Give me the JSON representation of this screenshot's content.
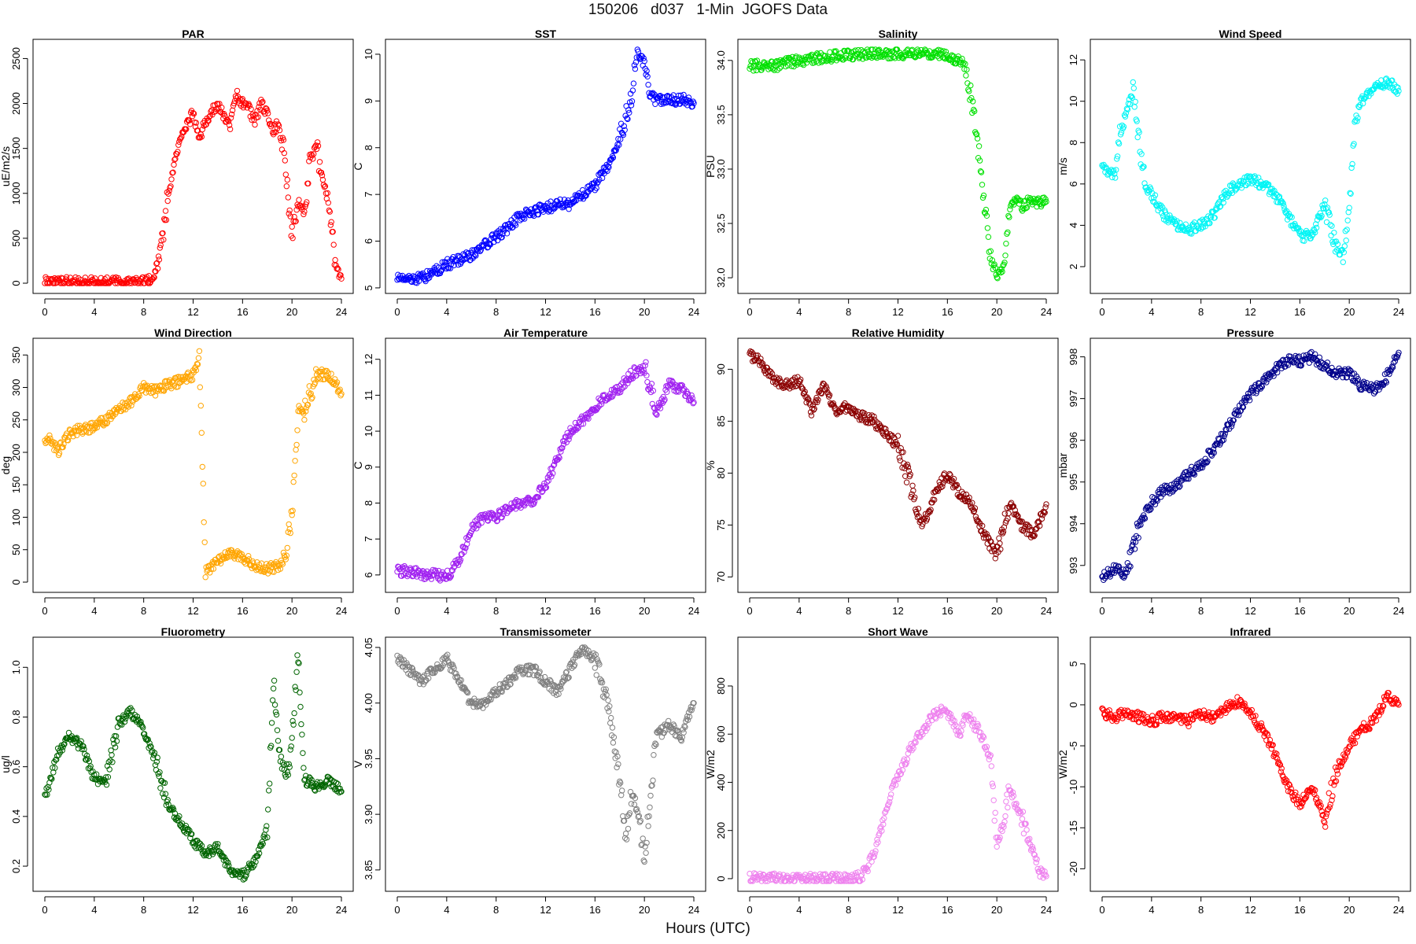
{
  "page": {
    "title": "150206   d037   1-Min  JGOFS Data",
    "x_axis_label": "Hours (UTC)"
  },
  "chart_data": [
    {
      "type": "scatter",
      "title": "PAR",
      "ylabel": "uE/m2/s",
      "color": "#ff0000",
      "xlim": [
        0,
        24
      ],
      "ylim": [
        0,
        2600
      ],
      "x_ticks": [
        0,
        4,
        8,
        12,
        16,
        20,
        24
      ],
      "y_ticks": [
        0,
        500,
        1000,
        1500,
        2000,
        2500
      ],
      "y_tick_labels": [
        "0",
        "500",
        "1000",
        "1500",
        "2000",
        "2500"
      ],
      "x": [
        0,
        2,
        4,
        6,
        8,
        8.8,
        9.2,
        9.6,
        10,
        10.5,
        11,
        11.5,
        12,
        12.5,
        13,
        13.5,
        14,
        14.5,
        15,
        15.5,
        16,
        16.5,
        17,
        17.5,
        18,
        18.5,
        19,
        19.5,
        20,
        20.5,
        21,
        21.5,
        22,
        22.5,
        23,
        23.5,
        24
      ],
      "y": [
        30,
        10,
        10,
        10,
        10,
        50,
        250,
        600,
        1000,
        1350,
        1600,
        1750,
        1900,
        1600,
        1800,
        1900,
        2000,
        1850,
        1750,
        2100,
        2000,
        1950,
        1800,
        2000,
        1900,
        1700,
        1800,
        1300,
        500,
        900,
        800,
        1400,
        1500,
        1100,
        900,
        250,
        50
      ]
    },
    {
      "type": "scatter",
      "title": "SST",
      "ylabel": "C",
      "color": "#0000ff",
      "xlim": [
        0,
        24
      ],
      "ylim": [
        5.1,
        10.1
      ],
      "x_ticks": [
        0,
        4,
        8,
        12,
        16,
        20,
        24
      ],
      "y_ticks": [
        5,
        6,
        7,
        8,
        9,
        10
      ],
      "y_tick_labels": [
        "5",
        "6",
        "7",
        "8",
        "9",
        "10"
      ],
      "x": [
        0,
        1,
        2,
        3,
        4,
        5,
        6,
        7,
        8,
        9,
        10,
        11,
        12,
        13,
        14,
        15,
        16,
        17,
        18,
        19,
        19.5,
        20,
        20.5,
        21,
        22,
        23,
        24
      ],
      "y": [
        5.25,
        5.2,
        5.2,
        5.35,
        5.5,
        5.6,
        5.7,
        5.9,
        6.1,
        6.3,
        6.55,
        6.65,
        6.7,
        6.8,
        6.8,
        7.0,
        7.2,
        7.6,
        8.2,
        9.2,
        10.05,
        9.8,
        9.1,
        9.0,
        9.0,
        9.05,
        8.95
      ]
    },
    {
      "type": "scatter",
      "title": "Salinity",
      "ylabel": "PSU",
      "color": "#00e000",
      "xlim": [
        0,
        24
      ],
      "ylim": [
        31.95,
        34.1
      ],
      "x_ticks": [
        0,
        4,
        8,
        12,
        16,
        20,
        24
      ],
      "y_ticks": [
        32.0,
        32.5,
        33.0,
        33.5,
        34.0
      ],
      "y_tick_labels": [
        "32.0",
        "32.5",
        "33.0",
        "33.5",
        "34.0"
      ],
      "x": [
        0,
        2,
        4,
        6,
        8,
        10,
        12,
        14,
        16,
        17,
        17.5,
        18,
        18.5,
        19,
        19.5,
        20,
        20.5,
        21,
        21.5,
        22,
        22.5,
        23,
        24
      ],
      "y": [
        33.95,
        33.95,
        34.0,
        34.03,
        34.05,
        34.07,
        34.06,
        34.07,
        34.05,
        34.0,
        33.95,
        33.6,
        33.2,
        32.7,
        32.2,
        32.0,
        32.1,
        32.6,
        32.75,
        32.65,
        32.7,
        32.7,
        32.7
      ]
    },
    {
      "type": "scatter",
      "title": "Wind Speed",
      "ylabel": "m/s",
      "color": "#00f5f5",
      "xlim": [
        0,
        24
      ],
      "ylim": [
        1.2,
        12.5
      ],
      "x_ticks": [
        0,
        4,
        8,
        12,
        16,
        20,
        24
      ],
      "y_ticks": [
        2,
        4,
        6,
        8,
        10,
        12
      ],
      "y_tick_labels": [
        "2",
        "4",
        "6",
        "8",
        "10",
        "12"
      ],
      "x": [
        0,
        0.5,
        1,
        1.5,
        2,
        2.5,
        3,
        3.5,
        4,
        5,
        6,
        7,
        8,
        9,
        10,
        11,
        12,
        13,
        14,
        15,
        16,
        17,
        18,
        19,
        19.5,
        20,
        20.5,
        21,
        22,
        23,
        24
      ],
      "y": [
        7,
        6.5,
        6.5,
        8.5,
        9.5,
        10.5,
        8,
        6,
        5.5,
        4.5,
        4,
        3.8,
        4,
        4.5,
        5.5,
        6,
        6.2,
        6,
        5.5,
        4.5,
        3.5,
        3.5,
        5,
        3,
        2.5,
        5,
        9,
        10,
        10.5,
        11,
        10.5
      ]
    },
    {
      "type": "scatter",
      "title": "Wind Direction",
      "ylabel": "deg",
      "color": "#ffa500",
      "xlim": [
        0,
        24
      ],
      "ylim": [
        0,
        360
      ],
      "x_ticks": [
        0,
        4,
        8,
        12,
        16,
        20,
        24
      ],
      "y_ticks": [
        0,
        50,
        100,
        150,
        200,
        250,
        300,
        350
      ],
      "y_tick_labels": [
        "0",
        "50",
        "100",
        "150",
        "200",
        "250",
        "300",
        "350"
      ],
      "x": [
        0,
        0.5,
        1,
        2,
        3,
        4,
        5,
        6,
        7,
        8,
        9,
        10,
        11,
        12,
        12.5,
        13,
        14,
        15,
        16,
        17,
        18,
        19,
        19.5,
        20,
        20.5,
        21,
        22,
        23,
        24
      ],
      "y": [
        220,
        220,
        200,
        230,
        235,
        240,
        250,
        265,
        280,
        300,
        295,
        305,
        310,
        320,
        340,
        15,
        30,
        45,
        40,
        25,
        20,
        25,
        45,
        100,
        270,
        260,
        320,
        320,
        290
      ]
    },
    {
      "type": "scatter",
      "title": "Air Temperature",
      "ylabel": "C",
      "color": "#a020f0",
      "xlim": [
        0,
        24
      ],
      "ylim": [
        5.8,
        12.3
      ],
      "x_ticks": [
        0,
        4,
        8,
        12,
        16,
        20,
        24
      ],
      "y_ticks": [
        6,
        7,
        8,
        9,
        10,
        11,
        12
      ],
      "y_tick_labels": [
        "6",
        "7",
        "8",
        "9",
        "10",
        "11",
        "12"
      ],
      "x": [
        0,
        1,
        2,
        3,
        4,
        5,
        6,
        7,
        8,
        9,
        10,
        11,
        12,
        13,
        14,
        15,
        16,
        17,
        18,
        19,
        20,
        21,
        22,
        23,
        24
      ],
      "y": [
        6.1,
        6.1,
        6.0,
        6.0,
        5.95,
        6.4,
        7.3,
        7.6,
        7.6,
        7.9,
        8.0,
        8.1,
        8.5,
        9.3,
        10.0,
        10.3,
        10.7,
        11.0,
        11.2,
        11.6,
        11.8,
        10.5,
        11.3,
        11.2,
        10.8
      ]
    },
    {
      "type": "scatter",
      "title": "Relative Humidity",
      "ylabel": "%",
      "color": "#8b0000",
      "xlim": [
        0,
        24
      ],
      "ylim": [
        69.5,
        92
      ],
      "x_ticks": [
        0,
        4,
        8,
        12,
        16,
        20,
        24
      ],
      "y_ticks": [
        70,
        75,
        80,
        85,
        90
      ],
      "y_tick_labels": [
        "70",
        "75",
        "80",
        "85",
        "90"
      ],
      "x": [
        0,
        1,
        2,
        3,
        4,
        5,
        6,
        7,
        8,
        9,
        10,
        11,
        12,
        13,
        14,
        15,
        16,
        17,
        18,
        19,
        20,
        21,
        22,
        23,
        24
      ],
      "y": [
        91.5,
        90.5,
        89,
        88.5,
        89,
        86,
        88.5,
        86,
        86.5,
        85.5,
        85,
        84,
        82.5,
        79,
        75,
        78,
        80,
        78,
        77,
        74,
        72,
        77,
        75,
        74,
        77
      ]
    },
    {
      "type": "scatter",
      "title": "Pressure",
      "ylabel": "mbar",
      "color": "#00008b",
      "xlim": [
        0,
        24
      ],
      "ylim": [
        992.6,
        998.2
      ],
      "x_ticks": [
        0,
        4,
        8,
        12,
        16,
        20,
        24
      ],
      "y_ticks": [
        993,
        994,
        995,
        996,
        997,
        998
      ],
      "y_tick_labels": [
        "993",
        "994",
        "995",
        "996",
        "997",
        "998"
      ],
      "x": [
        0,
        1,
        2,
        3,
        4,
        5,
        6,
        7,
        8,
        9,
        10,
        11,
        12,
        13,
        14,
        15,
        16,
        17,
        18,
        19,
        20,
        21,
        22,
        23,
        24
      ],
      "y": [
        992.7,
        992.9,
        992.8,
        994.0,
        994.5,
        994.8,
        994.9,
        995.2,
        995.4,
        995.8,
        996.2,
        996.7,
        997.1,
        997.4,
        997.7,
        997.9,
        997.9,
        998.0,
        997.8,
        997.6,
        997.6,
        997.3,
        997.2,
        997.5,
        998.1
      ]
    },
    {
      "type": "scatter",
      "title": "Fluorometry",
      "ylabel": "ug/l",
      "color": "#006400",
      "xlim": [
        0,
        24
      ],
      "ylim": [
        0.14,
        1.08
      ],
      "x_ticks": [
        0,
        4,
        8,
        12,
        16,
        20,
        24
      ],
      "y_ticks": [
        0.2,
        0.4,
        0.6,
        0.8,
        1.0
      ],
      "y_tick_labels": [
        "0.2",
        "0.4",
        "0.6",
        "0.8",
        "1.0"
      ],
      "x": [
        0,
        0.5,
        1,
        2,
        3,
        4,
        5,
        6,
        7,
        8,
        9,
        10,
        11,
        12,
        13,
        14,
        15,
        16,
        17,
        18,
        18.5,
        19,
        19.5,
        20,
        20.5,
        21,
        22,
        23,
        24
      ],
      "y": [
        0.48,
        0.55,
        0.65,
        0.72,
        0.68,
        0.55,
        0.55,
        0.78,
        0.82,
        0.75,
        0.62,
        0.45,
        0.38,
        0.3,
        0.25,
        0.28,
        0.18,
        0.16,
        0.22,
        0.35,
        0.95,
        0.65,
        0.55,
        0.7,
        1.05,
        0.55,
        0.52,
        0.55,
        0.5
      ]
    },
    {
      "type": "scatter",
      "title": "Transmissometer",
      "ylabel": "V",
      "color": "#808080",
      "xlim": [
        0,
        24
      ],
      "ylim": [
        3.84,
        4.05
      ],
      "x_ticks": [
        0,
        4,
        8,
        12,
        16,
        20,
        24
      ],
      "y_ticks": [
        3.85,
        3.9,
        3.95,
        4.0,
        4.05
      ],
      "y_tick_labels": [
        "3.85",
        "3.90",
        "3.95",
        "4.00",
        "4.05"
      ],
      "x": [
        0,
        1,
        2,
        3,
        4,
        5,
        6,
        7,
        8,
        9,
        10,
        11,
        12,
        13,
        14,
        15,
        16,
        17,
        18,
        18.5,
        19,
        19.5,
        20,
        20.5,
        21,
        22,
        23,
        24
      ],
      "y": [
        4.04,
        4.03,
        4.02,
        4.03,
        4.04,
        4.02,
        4.0,
        4.0,
        4.01,
        4.02,
        4.03,
        4.03,
        4.02,
        4.01,
        4.03,
        4.05,
        4.04,
        4.0,
        3.93,
        3.88,
        3.92,
        3.9,
        3.86,
        3.92,
        3.97,
        3.98,
        3.97,
        4.0
      ]
    },
    {
      "type": "scatter",
      "title": "Short Wave",
      "ylabel": "W/m2",
      "color": "#ee82ee",
      "xlim": [
        0,
        24
      ],
      "ylim": [
        -10,
        960
      ],
      "x_ticks": [
        0,
        4,
        8,
        12,
        16,
        20,
        24
      ],
      "y_ticks": [
        0,
        200,
        400,
        600,
        800
      ],
      "y_tick_labels": [
        "0",
        "200",
        "400",
        "600",
        "800"
      ],
      "x": [
        0,
        2,
        4,
        6,
        8,
        9,
        9.5,
        10,
        10.5,
        11,
        11.5,
        12,
        12.5,
        13,
        13.5,
        14,
        14.5,
        15,
        15.5,
        16,
        16.5,
        17,
        17.5,
        18,
        18.5,
        19,
        19.5,
        20,
        20.5,
        21,
        22,
        23,
        23.5,
        24
      ],
      "y": [
        5,
        0,
        0,
        0,
        0,
        10,
        40,
        100,
        180,
        270,
        360,
        420,
        480,
        540,
        580,
        600,
        660,
        680,
        700,
        680,
        650,
        600,
        680,
        650,
        620,
        560,
        500,
        140,
        220,
        380,
        250,
        100,
        30,
        10
      ]
    },
    {
      "type": "scatter",
      "title": "Infrared",
      "ylabel": "W/m2",
      "color": "#ff0000",
      "xlim": [
        0,
        24
      ],
      "ylim": [
        -21.5,
        7
      ],
      "x_ticks": [
        0,
        4,
        8,
        12,
        16,
        20,
        24
      ],
      "y_ticks": [
        -20,
        -15,
        -10,
        -5,
        0,
        5
      ],
      "y_tick_labels": [
        "-20",
        "-15",
        "-10",
        "-5",
        "0",
        "5"
      ],
      "x": [
        0,
        1,
        2,
        3,
        4,
        5,
        6,
        7,
        8,
        9,
        10,
        11,
        12,
        13,
        14,
        15,
        16,
        17,
        18,
        19,
        20,
        21,
        22,
        23,
        24
      ],
      "y": [
        -1,
        -1.5,
        -1,
        -1.5,
        -2,
        -1.5,
        -1.5,
        -2,
        -1,
        -1.5,
        -0.5,
        0.5,
        -1,
        -3,
        -6,
        -10,
        -12,
        -10,
        -14,
        -8,
        -5,
        -3,
        -2,
        1,
        0
      ]
    }
  ]
}
